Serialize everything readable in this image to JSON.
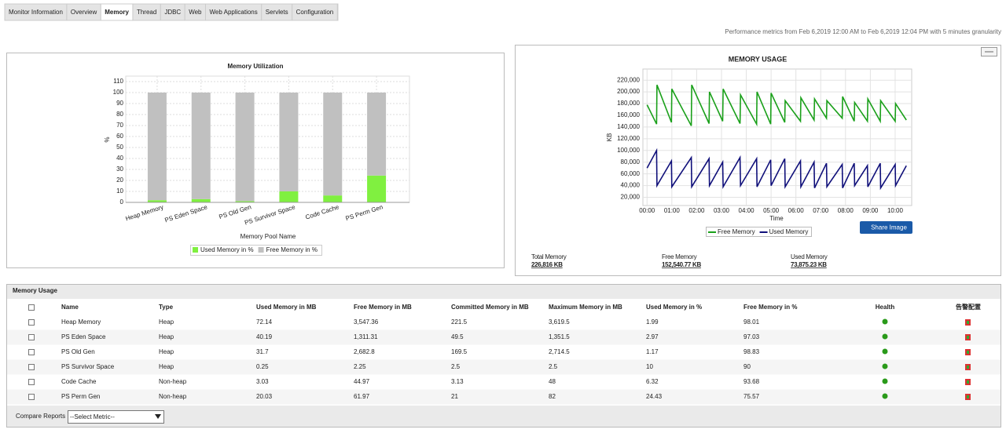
{
  "tabs": [
    "Monitor Information",
    "Overview",
    "Memory",
    "Thread",
    "JDBC",
    "Web",
    "Web Applications",
    "Servlets",
    "Configuration"
  ],
  "performance_note": "Performance metrics from Feb 6,2019 12:00 AM to Feb 6,2019 12:04 PM with 5 minutes granularity",
  "chart_data": [
    {
      "type": "bar",
      "stacked": true,
      "title": "Memory Utilization",
      "x_label": "Memory Pool Name",
      "y_label": "%",
      "categories": [
        "Heap Memory",
        "PS Eden Space",
        "PS Old Gen",
        "PS Survivor Space",
        "Code Cache",
        "PS Perm Gen"
      ],
      "series": [
        {
          "name": "Used Memory in %",
          "color": "#80f040",
          "values": [
            1.99,
            2.97,
            1.17,
            10,
            6.32,
            24.43
          ]
        },
        {
          "name": "Free Memory in %",
          "color": "#c0c0c0",
          "values": [
            98.01,
            97.03,
            98.83,
            90,
            93.68,
            75.57
          ]
        }
      ],
      "ylim": [
        0,
        115
      ],
      "yticks": [
        0,
        10,
        20,
        30,
        40,
        50,
        60,
        70,
        80,
        90,
        100,
        110
      ],
      "grid": true
    },
    {
      "type": "line",
      "title": "MEMORY USAGE",
      "x_label": "Time",
      "y_label": "KB",
      "x": [
        0,
        23,
        24,
        59,
        60,
        107,
        108,
        150,
        151,
        183,
        184,
        225,
        226,
        265,
        266,
        299,
        300,
        333,
        334,
        371,
        372,
        404,
        405,
        434,
        435,
        472,
        473,
        501,
        502,
        533,
        534,
        564,
        565,
        600,
        601,
        627
      ],
      "xlim": [
        -10,
        640
      ],
      "xticks": [
        {
          "value": 0,
          "label": "00:00"
        },
        {
          "value": 60,
          "label": "01:00"
        },
        {
          "value": 120,
          "label": "02:00"
        },
        {
          "value": 180,
          "label": "03:00"
        },
        {
          "value": 240,
          "label": "04:00"
        },
        {
          "value": 300,
          "label": "05:00"
        },
        {
          "value": 360,
          "label": "06:00"
        },
        {
          "value": 420,
          "label": "07:00"
        },
        {
          "value": 480,
          "label": "08:00"
        },
        {
          "value": 540,
          "label": "09:00"
        },
        {
          "value": 600,
          "label": "10:00"
        }
      ],
      "ylim": [
        6000,
        239000
      ],
      "yticks": [
        {
          "value": 20000,
          "label": "20,000"
        },
        {
          "value": 40000,
          "label": "40,000"
        },
        {
          "value": 60000,
          "label": "60,000"
        },
        {
          "value": 80000,
          "label": "80,000"
        },
        {
          "value": 100000,
          "label": "100,000"
        },
        {
          "value": 120000,
          "label": "120,000"
        },
        {
          "value": 140000,
          "label": "140,000"
        },
        {
          "value": 160000,
          "label": "160,000"
        },
        {
          "value": 180000,
          "label": "180,000"
        },
        {
          "value": 200000,
          "label": "200,000"
        },
        {
          "value": 220000,
          "label": "220,000"
        }
      ],
      "grid": true,
      "series": [
        {
          "name": "Free Memory",
          "color": "#1aa01a",
          "values": [
            178000,
            145000,
            212000,
            148000,
            205000,
            142000,
            212000,
            146000,
            200000,
            150000,
            205000,
            146000,
            195000,
            145000,
            200000,
            145000,
            198000,
            148000,
            185000,
            150000,
            190000,
            152000,
            188000,
            155000,
            185000,
            155000,
            192000,
            150000,
            182000,
            150000,
            188000,
            150000,
            185000,
            150000,
            180000,
            152000
          ]
        },
        {
          "name": "Used Memory",
          "color": "#10107a",
          "values": [
            70000,
            100000,
            40000,
            82000,
            38000,
            88000,
            38000,
            86000,
            40000,
            80000,
            38000,
            88000,
            40000,
            86000,
            38000,
            84000,
            40000,
            86000,
            38000,
            82000,
            38000,
            80000,
            36000,
            78000,
            38000,
            76000,
            36000,
            78000,
            40000,
            74000,
            38000,
            78000,
            36000,
            76000,
            40000,
            74000
          ]
        }
      ]
    }
  ],
  "share_button": "Share Image",
  "memory_summary": [
    {
      "label": "Total Memory",
      "value": "226,816 KB"
    },
    {
      "label": "Free Memory",
      "value": "152,540.77 KB"
    },
    {
      "label": "Used Memory",
      "value": "73,875.23 KB"
    }
  ],
  "table": {
    "title": "Memory Usage",
    "columns": [
      "Name",
      "Type",
      "Used Memory in MB",
      "Free Memory in MB",
      "Committed Memory in MB",
      "Maximum Memory in MB",
      "Used Memory in %",
      "Free Memory in %",
      "Health",
      "告警配置"
    ],
    "rows": [
      [
        "Heap Memory",
        "Heap",
        "72.14",
        "3,547.36",
        "221.5",
        "3,619.5",
        "1.99",
        "98.01"
      ],
      [
        "PS Eden Space",
        "Heap",
        "40.19",
        "1,311.31",
        "49.5",
        "1,351.5",
        "2.97",
        "97.03"
      ],
      [
        "PS Old Gen",
        "Heap",
        "31.7",
        "2,682.8",
        "169.5",
        "2,714.5",
        "1.17",
        "98.83"
      ],
      [
        "PS Survivor Space",
        "Heap",
        "0.25",
        "2.25",
        "2.5",
        "2.5",
        "10",
        "90"
      ],
      [
        "Code Cache",
        "Non-heap",
        "3.03",
        "44.97",
        "3.13",
        "48",
        "6.32",
        "93.68"
      ],
      [
        "PS Perm Gen",
        "Non-heap",
        "20.03",
        "61.97",
        "21",
        "82",
        "24.43",
        "75.57"
      ]
    ]
  },
  "footer": {
    "label": "Compare Reports",
    "select": "--Select Metric--"
  }
}
